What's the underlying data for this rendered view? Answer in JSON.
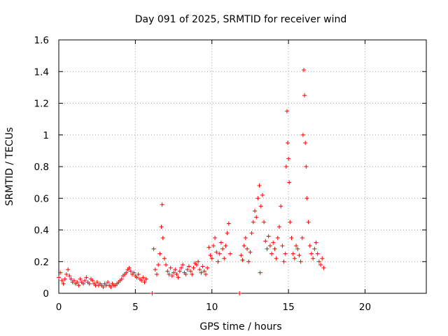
{
  "chart_data": {
    "type": "scatter",
    "title": "Day 091 of 2025, SRMTID for receiver wind",
    "xlabel": "GPS time / hours",
    "ylabel": "SRMTID / TECUs",
    "xlim": [
      0,
      24
    ],
    "ylim": [
      0,
      1.6
    ],
    "grid": true,
    "marker": "+",
    "color": "#ff0000",
    "x_ticks": [
      {
        "value": 0,
        "label": "0"
      },
      {
        "value": 5,
        "label": "5"
      },
      {
        "value": 10,
        "label": "10"
      },
      {
        "value": 15,
        "label": "15"
      },
      {
        "value": 20,
        "label": "20"
      }
    ],
    "y_ticks": [
      {
        "value": 0,
        "label": "0"
      },
      {
        "value": 0.2,
        "label": "0.2"
      },
      {
        "value": 0.4,
        "label": "0.4"
      },
      {
        "value": 0.6,
        "label": "0.6"
      },
      {
        "value": 0.8,
        "label": "0.8"
      },
      {
        "value": 1.0,
        "label": "1"
      },
      {
        "value": 1.2,
        "label": "1.2"
      },
      {
        "value": 1.4,
        "label": "1.4"
      },
      {
        "value": 1.6,
        "label": "1.6"
      }
    ],
    "series": [
      {
        "name": "SRMTID",
        "points": [
          [
            0.0,
            0.1
          ],
          [
            0.1,
            0.13
          ],
          [
            0.2,
            0.08
          ],
          [
            0.3,
            0.06
          ],
          [
            0.4,
            0.09
          ],
          [
            0.5,
            0.12
          ],
          [
            0.6,
            0.15
          ],
          [
            0.7,
            0.11
          ],
          [
            0.8,
            0.09
          ],
          [
            0.9,
            0.07
          ],
          [
            1.0,
            0.08
          ],
          [
            1.1,
            0.06
          ],
          [
            1.2,
            0.07
          ],
          [
            1.3,
            0.05
          ],
          [
            1.4,
            0.09
          ],
          [
            1.5,
            0.07
          ],
          [
            1.6,
            0.06
          ],
          [
            1.7,
            0.08
          ],
          [
            1.8,
            0.1
          ],
          [
            1.9,
            0.07
          ],
          [
            2.0,
            0.06
          ],
          [
            2.1,
            0.09
          ],
          [
            2.2,
            0.08
          ],
          [
            2.3,
            0.06
          ],
          [
            2.4,
            0.05
          ],
          [
            2.5,
            0.07
          ],
          [
            2.6,
            0.05
          ],
          [
            2.7,
            0.06
          ],
          [
            2.8,
            0.05
          ],
          [
            2.9,
            0.04
          ],
          [
            3.0,
            0.06
          ],
          [
            3.1,
            0.05
          ],
          [
            3.2,
            0.07
          ],
          [
            3.3,
            0.05
          ],
          [
            3.4,
            0.04
          ],
          [
            3.5,
            0.06
          ],
          [
            3.6,
            0.05
          ],
          [
            3.7,
            0.05
          ],
          [
            3.8,
            0.06
          ],
          [
            3.9,
            0.07
          ],
          [
            4.0,
            0.08
          ],
          [
            4.1,
            0.09
          ],
          [
            4.2,
            0.11
          ],
          [
            4.3,
            0.12
          ],
          [
            4.4,
            0.13
          ],
          [
            4.5,
            0.15
          ],
          [
            4.6,
            0.16
          ],
          [
            4.7,
            0.14
          ],
          [
            4.8,
            0.12
          ],
          [
            4.9,
            0.13
          ],
          [
            5.0,
            0.11
          ],
          [
            5.1,
            0.1
          ],
          [
            5.2,
            0.12
          ],
          [
            5.3,
            0.09
          ],
          [
            5.4,
            0.08
          ],
          [
            5.5,
            0.1
          ],
          [
            5.6,
            0.07
          ],
          [
            5.7,
            0.09
          ],
          [
            6.1,
            0.0
          ],
          [
            6.2,
            0.28
          ],
          [
            6.3,
            0.15
          ],
          [
            6.4,
            0.12
          ],
          [
            6.5,
            0.18
          ],
          [
            6.6,
            0.25
          ],
          [
            6.7,
            0.42
          ],
          [
            6.75,
            0.56
          ],
          [
            6.8,
            0.35
          ],
          [
            6.9,
            0.22
          ],
          [
            7.0,
            0.18
          ],
          [
            7.1,
            0.14
          ],
          [
            7.2,
            0.12
          ],
          [
            7.3,
            0.16
          ],
          [
            7.4,
            0.11
          ],
          [
            7.5,
            0.13
          ],
          [
            7.6,
            0.15
          ],
          [
            7.7,
            0.12
          ],
          [
            7.8,
            0.1
          ],
          [
            7.9,
            0.14
          ],
          [
            8.0,
            0.16
          ],
          [
            8.1,
            0.18
          ],
          [
            8.2,
            0.13
          ],
          [
            8.3,
            0.12
          ],
          [
            8.4,
            0.15
          ],
          [
            8.5,
            0.17
          ],
          [
            8.6,
            0.14
          ],
          [
            8.7,
            0.12
          ],
          [
            8.8,
            0.16
          ],
          [
            8.9,
            0.19
          ],
          [
            9.0,
            0.18
          ],
          [
            9.1,
            0.2
          ],
          [
            9.2,
            0.15
          ],
          [
            9.3,
            0.13
          ],
          [
            9.4,
            0.17
          ],
          [
            9.5,
            0.14
          ],
          [
            9.6,
            0.12
          ],
          [
            9.7,
            0.16
          ],
          [
            9.8,
            0.29
          ],
          [
            9.9,
            0.24
          ],
          [
            10.0,
            0.22
          ],
          [
            10.1,
            0.3
          ],
          [
            10.2,
            0.35
          ],
          [
            10.3,
            0.26
          ],
          [
            10.4,
            0.2
          ],
          [
            10.5,
            0.25
          ],
          [
            10.6,
            0.32
          ],
          [
            10.7,
            0.28
          ],
          [
            10.8,
            0.22
          ],
          [
            10.9,
            0.3
          ],
          [
            11.0,
            0.38
          ],
          [
            11.1,
            0.44
          ],
          [
            11.2,
            0.25
          ],
          [
            11.8,
            0.0
          ],
          [
            11.9,
            0.24
          ],
          [
            12.0,
            0.21
          ],
          [
            12.1,
            0.3
          ],
          [
            12.2,
            0.35
          ],
          [
            12.3,
            0.28
          ],
          [
            12.4,
            0.2
          ],
          [
            12.5,
            0.26
          ],
          [
            12.6,
            0.38
          ],
          [
            12.7,
            0.45
          ],
          [
            12.8,
            0.52
          ],
          [
            12.9,
            0.48
          ],
          [
            13.0,
            0.6
          ],
          [
            13.1,
            0.68
          ],
          [
            13.15,
            0.13
          ],
          [
            13.2,
            0.55
          ],
          [
            13.3,
            0.62
          ],
          [
            13.4,
            0.45
          ],
          [
            13.5,
            0.33
          ],
          [
            13.6,
            0.28
          ],
          [
            13.7,
            0.36
          ],
          [
            13.8,
            0.3
          ],
          [
            13.9,
            0.25
          ],
          [
            14.0,
            0.32
          ],
          [
            14.1,
            0.28
          ],
          [
            14.2,
            0.22
          ],
          [
            14.3,
            0.35
          ],
          [
            14.4,
            0.42
          ],
          [
            14.5,
            0.55
          ],
          [
            14.6,
            0.3
          ],
          [
            14.7,
            0.2
          ],
          [
            14.8,
            0.25
          ],
          [
            14.85,
            0.8
          ],
          [
            14.9,
            1.15
          ],
          [
            14.95,
            0.95
          ],
          [
            15.0,
            0.85
          ],
          [
            15.05,
            0.7
          ],
          [
            15.1,
            0.45
          ],
          [
            15.2,
            0.35
          ],
          [
            15.3,
            0.25
          ],
          [
            15.4,
            0.22
          ],
          [
            15.5,
            0.3
          ],
          [
            15.6,
            0.28
          ],
          [
            15.7,
            0.24
          ],
          [
            15.8,
            0.2
          ],
          [
            15.9,
            0.35
          ],
          [
            15.95,
            1.0
          ],
          [
            16.0,
            1.41
          ],
          [
            16.05,
            1.25
          ],
          [
            16.1,
            0.95
          ],
          [
            16.15,
            0.8
          ],
          [
            16.2,
            0.6
          ],
          [
            16.3,
            0.45
          ],
          [
            16.4,
            0.3
          ],
          [
            16.5,
            0.25
          ],
          [
            16.6,
            0.22
          ],
          [
            16.7,
            0.28
          ],
          [
            16.8,
            0.32
          ],
          [
            16.9,
            0.25
          ],
          [
            17.0,
            0.2
          ],
          [
            17.1,
            0.18
          ],
          [
            17.2,
            0.22
          ],
          [
            17.3,
            0.16
          ]
        ]
      }
    ]
  }
}
